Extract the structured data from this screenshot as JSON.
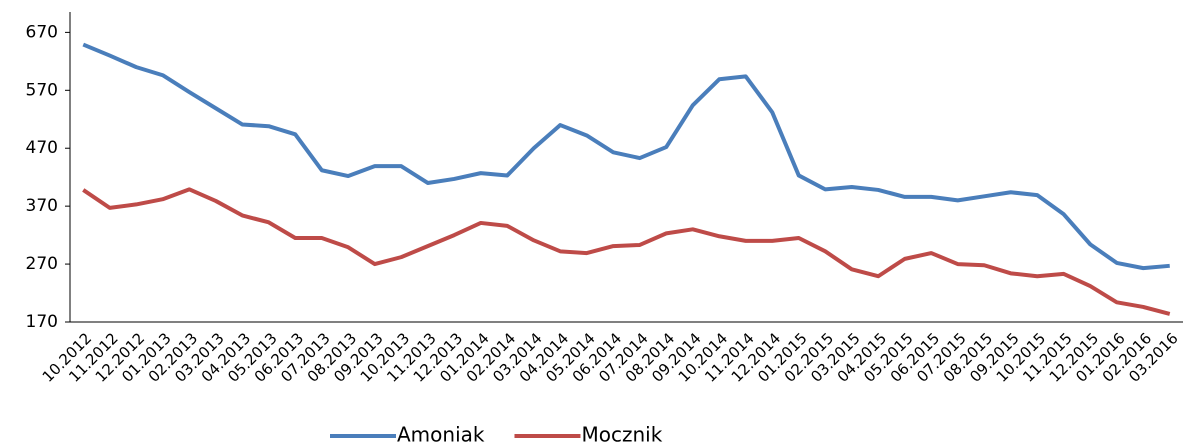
{
  "chart_data": {
    "type": "line",
    "categories": [
      "10.2012",
      "11.2012",
      "12.2012",
      "01.2013",
      "02.2013",
      "03.2013",
      "04.2013",
      "05.2013",
      "06.2013",
      "07.2013",
      "08.2013",
      "09.2013",
      "10.2013",
      "11.2013",
      "12.2013",
      "01.2014",
      "02.2014",
      "03.2014",
      "04.2014",
      "05.2014",
      "06.2014",
      "07.2014",
      "08.2014",
      "09.2014",
      "10.2014",
      "11.2014",
      "12.2014",
      "01.2015",
      "02.2015",
      "03.2015",
      "04.2015",
      "05.2015",
      "06.2015",
      "07.2015",
      "08.2015",
      "09.2015",
      "10.2015",
      "11.2015",
      "12.2015",
      "01.2016",
      "02.2016",
      "03.2016"
    ],
    "series": [
      {
        "name": "Amoniak",
        "color": "#4a7ebb",
        "values": [
          649,
          630,
          610,
          596,
          567,
          539,
          511,
          508,
          494,
          432,
          422,
          439,
          439,
          410,
          417,
          427,
          423,
          470,
          510,
          492,
          463,
          453,
          472,
          544,
          589,
          594,
          532,
          423,
          399,
          403,
          398,
          386,
          386,
          380,
          387,
          394,
          389,
          356,
          304,
          272,
          263,
          267
        ]
      },
      {
        "name": "Mocznik",
        "color": "#be4b48",
        "values": [
          398,
          367,
          373,
          382,
          399,
          379,
          354,
          342,
          315,
          315,
          299,
          270,
          282,
          301,
          320,
          341,
          336,
          311,
          292,
          289,
          301,
          303,
          323,
          330,
          318,
          310,
          310,
          315,
          292,
          261,
          249,
          279,
          289,
          270,
          268,
          254,
          249,
          253,
          232,
          204,
          196,
          184
        ]
      }
    ],
    "ylim": [
      170,
      700
    ],
    "yticks": [
      170,
      270,
      370,
      470,
      570,
      670
    ],
    "legend": "bottom"
  }
}
